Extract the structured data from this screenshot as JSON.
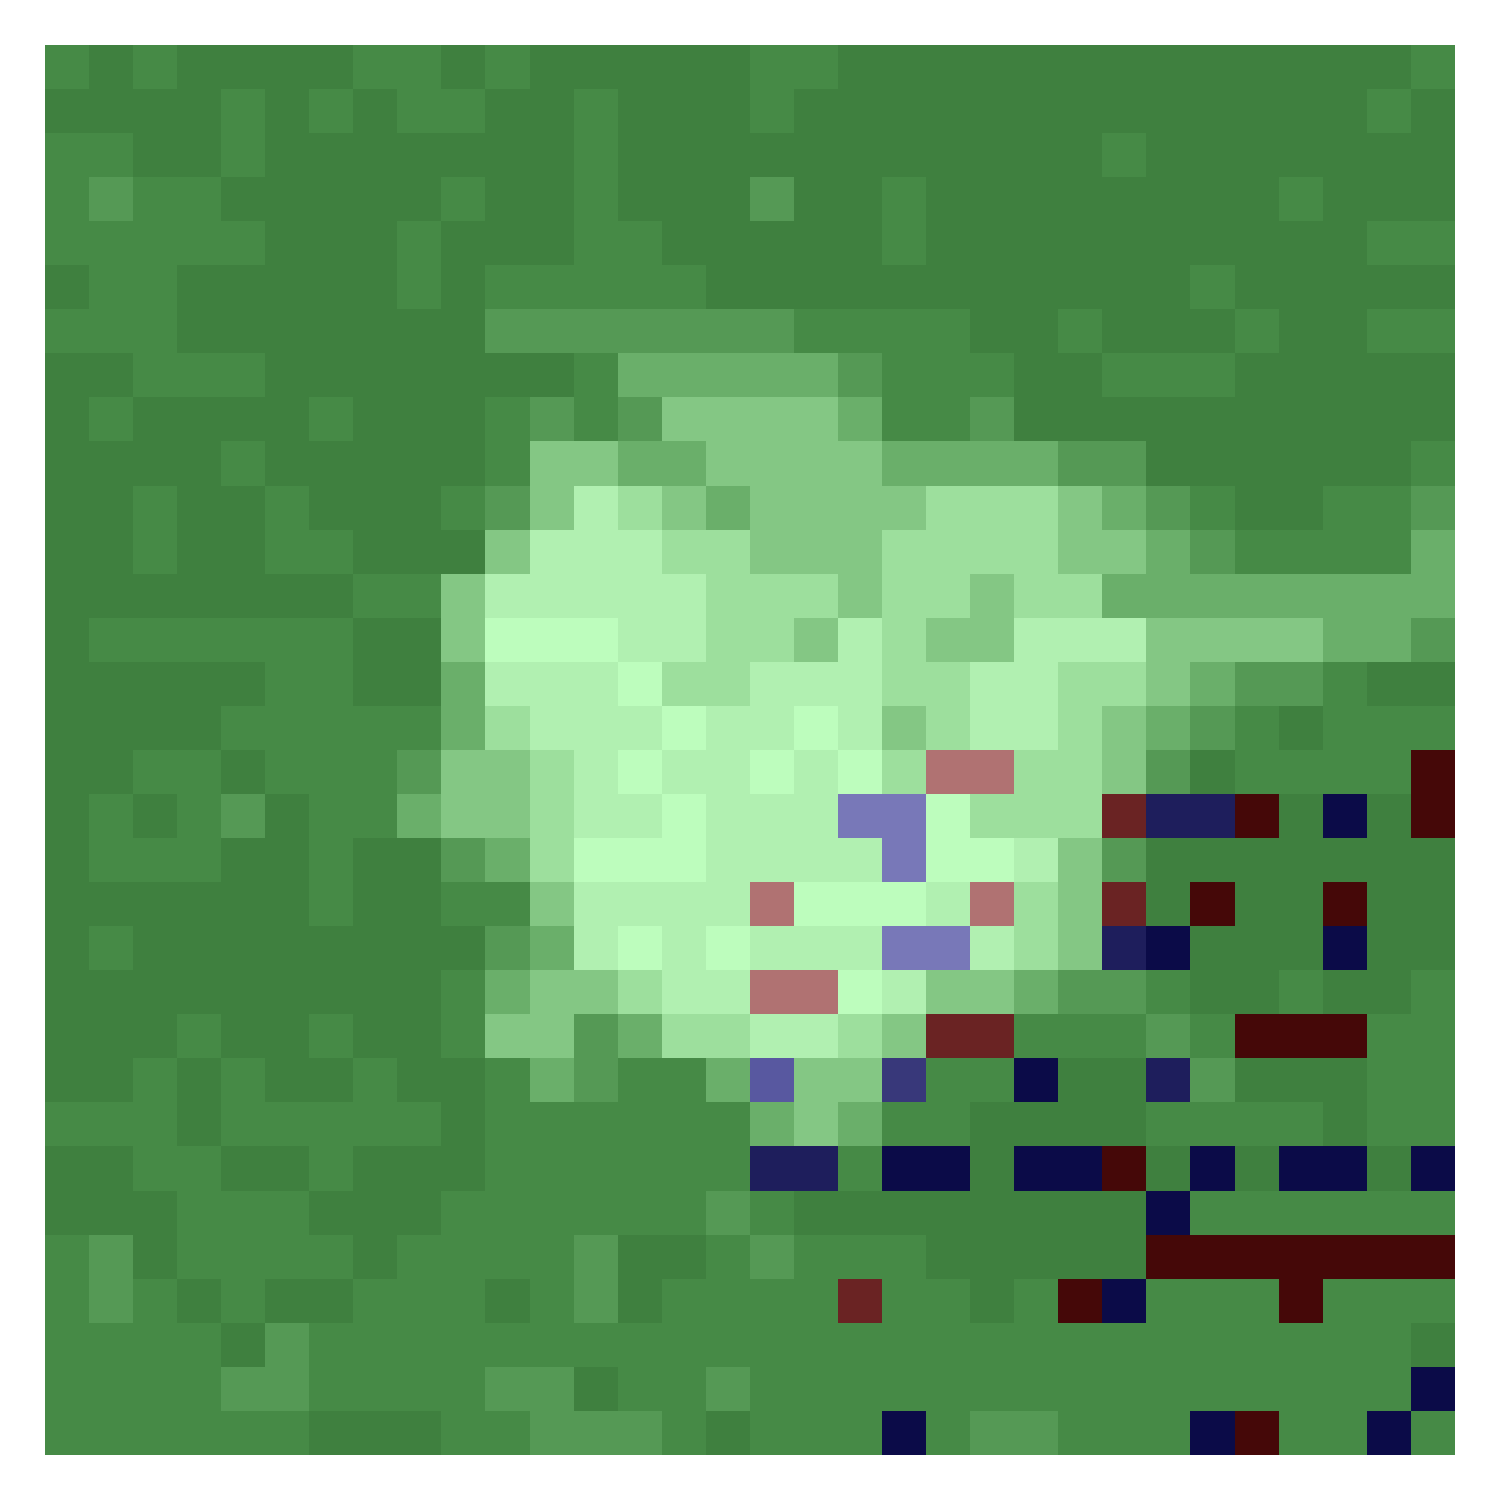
{
  "chart_data": {
    "type": "image",
    "tick_labels": false,
    "colors": [
      "#3f803f",
      "#468a46",
      "#559955",
      "#6aaf6a",
      "#84c784",
      "#9ddf9d",
      "#b1f0b1",
      "#bdfdbd",
      "#450808",
      "#6a2323",
      "#b07272",
      "#0b0b48",
      "#1e1e5c",
      "#7878b8",
      "#38387a",
      "#5858a0"
    ],
    "cells": [
      [
        1,
        0,
        1,
        0,
        0,
        0,
        0,
        1,
        1,
        0,
        1,
        0,
        0,
        0,
        0,
        0,
        1,
        1,
        0,
        0,
        0,
        0,
        0,
        0,
        0,
        0,
        0,
        0,
        0,
        0,
        0,
        1
      ],
      [
        0,
        0,
        0,
        0,
        1,
        0,
        1,
        0,
        1,
        1,
        0,
        0,
        1,
        0,
        0,
        0,
        1,
        0,
        0,
        0,
        0,
        0,
        0,
        0,
        0,
        0,
        0,
        0,
        0,
        0,
        1,
        0
      ],
      [
        1,
        1,
        0,
        0,
        1,
        0,
        0,
        0,
        0,
        0,
        0,
        0,
        1,
        0,
        0,
        0,
        0,
        0,
        0,
        0,
        0,
        0,
        0,
        0,
        1,
        0,
        0,
        0,
        0,
        0,
        0,
        0
      ],
      [
        1,
        2,
        1,
        1,
        0,
        0,
        0,
        0,
        0,
        1,
        0,
        0,
        1,
        0,
        0,
        0,
        2,
        0,
        0,
        1,
        0,
        0,
        0,
        0,
        0,
        0,
        0,
        0,
        1,
        0,
        0,
        0
      ],
      [
        1,
        1,
        1,
        1,
        1,
        0,
        0,
        0,
        1,
        0,
        0,
        0,
        1,
        1,
        0,
        0,
        0,
        0,
        0,
        1,
        0,
        0,
        0,
        0,
        0,
        0,
        0,
        0,
        0,
        0,
        1,
        1
      ],
      [
        0,
        1,
        1,
        0,
        0,
        0,
        0,
        0,
        1,
        0,
        1,
        1,
        1,
        1,
        1,
        0,
        0,
        0,
        0,
        0,
        0,
        0,
        0,
        0,
        0,
        0,
        1,
        0,
        0,
        0,
        0,
        0
      ],
      [
        1,
        1,
        1,
        0,
        0,
        0,
        0,
        0,
        0,
        0,
        2,
        2,
        2,
        2,
        2,
        2,
        2,
        1,
        1,
        1,
        1,
        0,
        0,
        1,
        0,
        0,
        0,
        1,
        0,
        0,
        1,
        1
      ],
      [
        0,
        0,
        1,
        1,
        1,
        0,
        0,
        0,
        0,
        0,
        0,
        0,
        1,
        3,
        3,
        3,
        3,
        3,
        2,
        1,
        1,
        1,
        0,
        0,
        1,
        1,
        1,
        0,
        0,
        0,
        0,
        0
      ],
      [
        0,
        1,
        0,
        0,
        0,
        0,
        1,
        0,
        0,
        0,
        1,
        2,
        1,
        2,
        4,
        4,
        4,
        4,
        3,
        1,
        1,
        2,
        0,
        0,
        0,
        0,
        0,
        0,
        0,
        0,
        0,
        0
      ],
      [
        0,
        0,
        0,
        0,
        1,
        0,
        0,
        0,
        0,
        0,
        1,
        4,
        4,
        3,
        3,
        4,
        4,
        4,
        4,
        3,
        3,
        3,
        3,
        2,
        2,
        0,
        0,
        0,
        0,
        0,
        0,
        1
      ],
      [
        0,
        0,
        1,
        0,
        0,
        1,
        0,
        0,
        0,
        1,
        2,
        4,
        6,
        5,
        4,
        3,
        4,
        4,
        4,
        4,
        5,
        5,
        5,
        4,
        3,
        2,
        1,
        0,
        0,
        1,
        1,
        2
      ],
      [
        0,
        0,
        1,
        0,
        0,
        1,
        1,
        0,
        0,
        0,
        4,
        6,
        6,
        6,
        5,
        5,
        4,
        4,
        4,
        5,
        5,
        5,
        5,
        4,
        4,
        3,
        2,
        1,
        1,
        1,
        1,
        3
      ],
      [
        0,
        0,
        0,
        0,
        0,
        0,
        0,
        1,
        1,
        4,
        6,
        6,
        6,
        6,
        6,
        5,
        5,
        5,
        4,
        5,
        5,
        4,
        5,
        5,
        3,
        3,
        3,
        3,
        3,
        3,
        3,
        3
      ],
      [
        0,
        1,
        1,
        1,
        1,
        1,
        1,
        0,
        0,
        4,
        7,
        7,
        7,
        6,
        6,
        5,
        5,
        4,
        6,
        5,
        4,
        4,
        6,
        6,
        6,
        4,
        4,
        4,
        4,
        3,
        3,
        2
      ],
      [
        0,
        0,
        0,
        0,
        0,
        1,
        1,
        0,
        0,
        3,
        6,
        6,
        6,
        7,
        5,
        5,
        6,
        6,
        6,
        5,
        5,
        6,
        6,
        5,
        5,
        4,
        3,
        2,
        2,
        1,
        0,
        0
      ],
      [
        0,
        0,
        0,
        0,
        1,
        1,
        1,
        1,
        1,
        3,
        5,
        6,
        6,
        6,
        7,
        6,
        6,
        7,
        6,
        4,
        5,
        6,
        6,
        5,
        4,
        3,
        2,
        1,
        0,
        1,
        1,
        1
      ],
      [
        0,
        0,
        1,
        1,
        0,
        1,
        1,
        1,
        2,
        4,
        4,
        5,
        6,
        7,
        6,
        6,
        7,
        6,
        7,
        5,
        10,
        10,
        5,
        5,
        4,
        2,
        0,
        1,
        1,
        1,
        1,
        8
      ],
      [
        0,
        1,
        0,
        1,
        2,
        0,
        1,
        1,
        3,
        4,
        4,
        5,
        6,
        6,
        7,
        6,
        6,
        6,
        13,
        13,
        7,
        5,
        5,
        5,
        9,
        12,
        12,
        8,
        0,
        11,
        0,
        8
      ],
      [
        0,
        1,
        1,
        1,
        0,
        0,
        1,
        0,
        0,
        2,
        3,
        5,
        7,
        7,
        7,
        6,
        6,
        6,
        6,
        13,
        7,
        7,
        6,
        4,
        2,
        0,
        0,
        0,
        0,
        0,
        0,
        0
      ],
      [
        0,
        0,
        0,
        0,
        0,
        0,
        1,
        0,
        0,
        1,
        1,
        4,
        6,
        6,
        6,
        6,
        10,
        7,
        7,
        7,
        6,
        10,
        5,
        4,
        9,
        0,
        8,
        0,
        0,
        8,
        0,
        0
      ],
      [
        0,
        1,
        0,
        0,
        0,
        0,
        0,
        0,
        0,
        0,
        2,
        3,
        6,
        7,
        6,
        7,
        6,
        6,
        6,
        13,
        13,
        6,
        5,
        4,
        12,
        11,
        0,
        0,
        0,
        11,
        0,
        0
      ],
      [
        0,
        0,
        0,
        0,
        0,
        0,
        0,
        0,
        0,
        1,
        3,
        4,
        4,
        5,
        6,
        6,
        10,
        10,
        7,
        6,
        4,
        4,
        3,
        2,
        2,
        1,
        0,
        0,
        1,
        0,
        0,
        1
      ],
      [
        0,
        0,
        0,
        1,
        0,
        0,
        1,
        0,
        0,
        1,
        4,
        4,
        2,
        3,
        5,
        5,
        6,
        6,
        5,
        4,
        9,
        9,
        1,
        1,
        1,
        2,
        1,
        8,
        8,
        8,
        1,
        1
      ],
      [
        0,
        0,
        1,
        0,
        1,
        0,
        0,
        1,
        0,
        0,
        1,
        3,
        2,
        1,
        1,
        3,
        15,
        4,
        4,
        14,
        1,
        1,
        11,
        0,
        0,
        12,
        2,
        0,
        0,
        0,
        1,
        1
      ],
      [
        1,
        1,
        1,
        0,
        1,
        1,
        1,
        1,
        1,
        0,
        1,
        1,
        1,
        1,
        1,
        1,
        3,
        4,
        3,
        1,
        1,
        0,
        0,
        0,
        0,
        1,
        1,
        1,
        1,
        0,
        1,
        1
      ],
      [
        0,
        0,
        1,
        1,
        0,
        0,
        1,
        0,
        0,
        0,
        1,
        1,
        1,
        1,
        1,
        1,
        12,
        12,
        1,
        11,
        11,
        0,
        11,
        11,
        8,
        0,
        11,
        0,
        11,
        11,
        0,
        11
      ],
      [
        0,
        0,
        0,
        1,
        1,
        1,
        0,
        0,
        0,
        1,
        1,
        1,
        1,
        1,
        1,
        2,
        1,
        0,
        0,
        0,
        0,
        0,
        0,
        0,
        0,
        11,
        1,
        1,
        1,
        1,
        1,
        1
      ],
      [
        1,
        2,
        0,
        1,
        1,
        1,
        1,
        0,
        1,
        1,
        1,
        1,
        2,
        0,
        0,
        1,
        2,
        1,
        1,
        1,
        0,
        0,
        0,
        0,
        0,
        8,
        8,
        8,
        8,
        8,
        8,
        8
      ],
      [
        1,
        2,
        1,
        0,
        1,
        0,
        0,
        1,
        1,
        1,
        0,
        1,
        2,
        0,
        1,
        1,
        1,
        1,
        9,
        1,
        1,
        0,
        1,
        8,
        11,
        1,
        1,
        1,
        8,
        1,
        1,
        1
      ],
      [
        1,
        1,
        1,
        1,
        0,
        2,
        1,
        1,
        1,
        1,
        1,
        1,
        1,
        1,
        1,
        1,
        1,
        1,
        1,
        1,
        1,
        1,
        1,
        1,
        1,
        1,
        1,
        1,
        1,
        1,
        1,
        0
      ],
      [
        1,
        1,
        1,
        1,
        2,
        2,
        1,
        1,
        1,
        1,
        2,
        2,
        0,
        1,
        1,
        2,
        1,
        1,
        1,
        1,
        1,
        1,
        1,
        1,
        1,
        1,
        1,
        1,
        1,
        1,
        1,
        11
      ],
      [
        1,
        1,
        1,
        1,
        1,
        1,
        0,
        0,
        0,
        1,
        1,
        2,
        2,
        2,
        1,
        0,
        1,
        1,
        1,
        11,
        1,
        2,
        2,
        1,
        1,
        1,
        11,
        8,
        1,
        1,
        11,
        1
      ]
    ]
  }
}
